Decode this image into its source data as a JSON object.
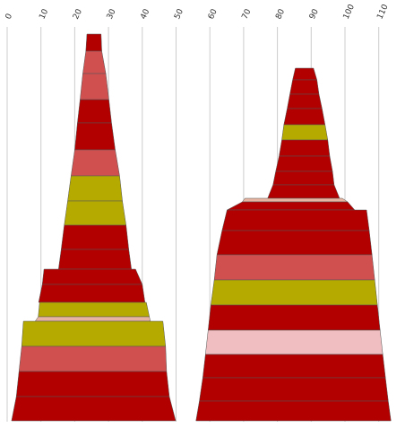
{
  "chart_data": {
    "type": "bar",
    "orientation": "horizontal-stacked-pyramid",
    "x_axis": {
      "position": "top",
      "ticks": [
        0,
        10,
        20,
        30,
        40,
        50,
        60,
        70,
        80,
        90,
        100,
        110
      ],
      "range": [
        0,
        110
      ]
    },
    "grid": {
      "vertical": true
    },
    "legend": null,
    "colors": {
      "red": "#b20000",
      "salmon": "#d05050",
      "olive": "#b4aa00",
      "pink": "#f0bec0",
      "peach": "#e6b4a0",
      "grid": "#cccccc",
      "edge": "#555555"
    },
    "stacks": [
      {
        "rows": [
          {
            "y1": 38,
            "y2": 57,
            "x1": 23.6,
            "x2": 27.8,
            "xb1": 23.3,
            "xb2": 28.0,
            "color": "red"
          },
          {
            "y1": 57,
            "y2": 82,
            "x1": 23.3,
            "x2": 28.0,
            "xb1": 22.4,
            "xb2": 29.2,
            "color": "salmon"
          },
          {
            "y1": 82,
            "y2": 111,
            "x1": 22.4,
            "x2": 29.2,
            "xb1": 21.6,
            "xb2": 30.1,
            "color": "salmon"
          },
          {
            "y1": 111,
            "y2": 137,
            "x1": 21.6,
            "x2": 30.1,
            "xb1": 20.8,
            "xb2": 30.9,
            "color": "red"
          },
          {
            "y1": 137,
            "y2": 167,
            "x1": 20.8,
            "x2": 30.9,
            "xb1": 20.0,
            "xb2": 32.0,
            "color": "red"
          },
          {
            "y1": 167,
            "y2": 196,
            "x1": 20.0,
            "x2": 32.0,
            "xb1": 18.9,
            "xb2": 33.3,
            "color": "salmon"
          },
          {
            "y1": 196,
            "y2": 224,
            "x1": 18.9,
            "x2": 33.3,
            "xb1": 17.9,
            "xb2": 34.1,
            "color": "olive"
          },
          {
            "y1": 224,
            "y2": 251,
            "x1": 17.9,
            "x2": 34.1,
            "xb1": 16.9,
            "xb2": 35.2,
            "color": "olive"
          },
          {
            "y1": 251,
            "y2": 278,
            "x1": 16.9,
            "x2": 35.2,
            "xb1": 16.0,
            "xb2": 36.0,
            "color": "red"
          },
          {
            "y1": 278,
            "y2": 300,
            "x1": 16.0,
            "x2": 36.0,
            "xb1": 15.2,
            "xb2": 36.8,
            "color": "red"
          },
          {
            "y1": 300,
            "y2": 317,
            "x1": 10.9,
            "x2": 38.0,
            "xb1": 10.4,
            "xb2": 40.0,
            "color": "red"
          },
          {
            "y1": 317,
            "y2": 337,
            "x1": 10.4,
            "x2": 40.0,
            "xb1": 9.3,
            "xb2": 40.8,
            "color": "red"
          },
          {
            "y1": 337,
            "y2": 353,
            "x1": 9.6,
            "x2": 41.2,
            "xb1": 9.2,
            "xb2": 42.1,
            "color": "olive"
          },
          {
            "y1": 353,
            "y2": 358,
            "x1": 9.2,
            "x2": 42.1,
            "xb1": 8.3,
            "xb2": 42.4,
            "color": "peach"
          },
          {
            "y1": 358,
            "y2": 386,
            "x1": 4.8,
            "x2": 46.1,
            "xb1": 4.3,
            "xb2": 46.9,
            "color": "olive"
          },
          {
            "y1": 386,
            "y2": 414,
            "x1": 4.3,
            "x2": 46.9,
            "xb1": 3.5,
            "xb2": 47.2,
            "color": "salmon"
          },
          {
            "y1": 414,
            "y2": 442,
            "x1": 3.5,
            "x2": 47.2,
            "xb1": 2.7,
            "xb2": 48.0,
            "color": "red"
          },
          {
            "y1": 442,
            "y2": 469,
            "x1": 2.7,
            "x2": 48.0,
            "xb1": 1.3,
            "xb2": 49.9,
            "color": "red"
          }
        ]
      },
      {
        "rows": [
          {
            "y1": 76,
            "y2": 89,
            "x1": 85.3,
            "x2": 90.7,
            "xb1": 84.5,
            "xb2": 91.7,
            "color": "red"
          },
          {
            "y1": 89,
            "y2": 105,
            "x1": 84.5,
            "x2": 91.7,
            "xb1": 83.7,
            "xb2": 92.3,
            "color": "red"
          },
          {
            "y1": 105,
            "y2": 121,
            "x1": 83.7,
            "x2": 92.3,
            "xb1": 82.9,
            "xb2": 93.2,
            "color": "red"
          },
          {
            "y1": 121,
            "y2": 139,
            "x1": 82.9,
            "x2": 93.2,
            "xb1": 81.9,
            "xb2": 94.1,
            "color": "red"
          },
          {
            "y1": 139,
            "y2": 156,
            "x1": 81.9,
            "x2": 94.1,
            "xb1": 81.3,
            "xb2": 94.9,
            "color": "olive"
          },
          {
            "y1": 156,
            "y2": 174,
            "x1": 81.3,
            "x2": 94.9,
            "xb1": 80.5,
            "xb2": 95.5,
            "color": "red"
          },
          {
            "y1": 174,
            "y2": 191,
            "x1": 80.5,
            "x2": 95.5,
            "xb1": 79.5,
            "xb2": 96.3,
            "color": "red"
          },
          {
            "y1": 191,
            "y2": 206,
            "x1": 79.5,
            "x2": 96.3,
            "xb1": 78.7,
            "xb2": 96.8,
            "color": "red"
          },
          {
            "y1": 206,
            "y2": 221,
            "x1": 78.7,
            "x2": 96.8,
            "xb1": 77.1,
            "xb2": 98.4,
            "color": "red"
          },
          {
            "y1": 221,
            "y2": 225,
            "x1": 70.4,
            "x2": 99.2,
            "xb1": 69.6,
            "xb2": 100.8,
            "color": "peach"
          },
          {
            "y1": 225,
            "y2": 234,
            "x1": 69.6,
            "x2": 100.8,
            "xb1": 65.1,
            "xb2": 102.9,
            "color": "red"
          },
          {
            "y1": 234,
            "y2": 257,
            "x1": 65.1,
            "x2": 106.4,
            "xb1": 63.6,
            "xb2": 107.2,
            "color": "red"
          },
          {
            "y1": 257,
            "y2": 284,
            "x1": 63.6,
            "x2": 107.2,
            "xb1": 62.1,
            "xb2": 108.0,
            "color": "red"
          },
          {
            "y1": 284,
            "y2": 312,
            "x1": 62.1,
            "x2": 108.0,
            "xb1": 61.3,
            "xb2": 108.8,
            "color": "salmon"
          },
          {
            "y1": 312,
            "y2": 340,
            "x1": 61.3,
            "x2": 108.8,
            "xb1": 60.3,
            "xb2": 109.6,
            "color": "olive"
          },
          {
            "y1": 340,
            "y2": 368,
            "x1": 60.3,
            "x2": 109.6,
            "xb1": 59.5,
            "xb2": 110.4,
            "color": "red"
          },
          {
            "y1": 368,
            "y2": 395,
            "x1": 59.5,
            "x2": 110.4,
            "xb1": 58.7,
            "xb2": 111.2,
            "color": "pink"
          },
          {
            "y1": 395,
            "y2": 421,
            "x1": 58.7,
            "x2": 111.2,
            "xb1": 57.9,
            "xb2": 112.0,
            "color": "red"
          },
          {
            "y1": 421,
            "y2": 447,
            "x1": 57.9,
            "x2": 112.0,
            "xb1": 56.9,
            "xb2": 112.8,
            "color": "red"
          },
          {
            "y1": 447,
            "y2": 469,
            "x1": 56.9,
            "x2": 112.8,
            "xb1": 55.9,
            "xb2": 113.6,
            "color": "red"
          }
        ]
      }
    ]
  }
}
